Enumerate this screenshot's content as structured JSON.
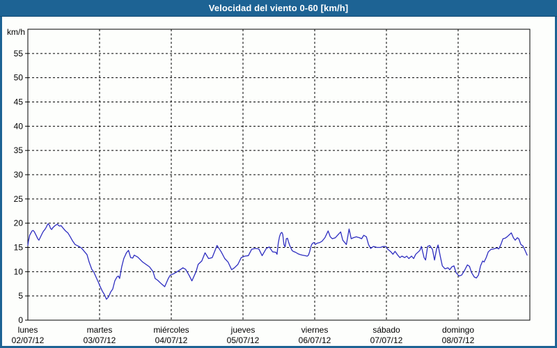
{
  "window": {
    "title": "Velocidad del viento 0-60 [km/h]"
  },
  "colors": {
    "titlebar": "#1d6394",
    "frame_border": "#1d6394",
    "title_text": "#ffffff",
    "plot_background": "#fdfefc",
    "axis": "#000000",
    "grid": "#000000",
    "line": "#2d2dc0"
  },
  "chart_data": {
    "type": "line",
    "title": "Velocidad del viento 0-60 [km/h]",
    "ylabel": "km/h",
    "y_unit_label": "km/h",
    "ylim": [
      0,
      60
    ],
    "y_ticks": [
      0,
      5,
      10,
      15,
      20,
      25,
      30,
      35,
      40,
      45,
      50,
      55
    ],
    "x_hours_range": [
      0,
      168
    ],
    "grid": "dashed",
    "legend_position": "none",
    "x_day_ticks": [
      {
        "day": "lunes",
        "date": "02/07/12"
      },
      {
        "day": "martes",
        "date": "03/07/12"
      },
      {
        "day": "miércoles",
        "date": "04/07/12"
      },
      {
        "day": "jueves",
        "date": "05/07/12"
      },
      {
        "day": "viernes",
        "date": "06/07/12"
      },
      {
        "day": "sábado",
        "date": "07/07/12"
      },
      {
        "day": "domingo",
        "date": "08/07/12"
      }
    ],
    "series": [
      {
        "name": "velocidad del viento",
        "color": "#2d2dc0",
        "points": [
          [
            0,
            15.4
          ],
          [
            0.2,
            16.3
          ],
          [
            0.6,
            17.5
          ],
          [
            1.4,
            18.4
          ],
          [
            1.8,
            18.5
          ],
          [
            2.2,
            18.2
          ],
          [
            3,
            17.2
          ],
          [
            3.3,
            16.8
          ],
          [
            3.7,
            16.5
          ],
          [
            4.1,
            17
          ],
          [
            4.5,
            17.5
          ],
          [
            4.9,
            18
          ],
          [
            5.3,
            18.4
          ],
          [
            5.7,
            18.7
          ],
          [
            6.1,
            19.1
          ],
          [
            6.4,
            19.5
          ],
          [
            6.8,
            19.9
          ],
          [
            7.2,
            19.6
          ],
          [
            7.6,
            18.9
          ],
          [
            8,
            18.7
          ],
          [
            8.4,
            19.1
          ],
          [
            9.1,
            19.5
          ],
          [
            9.9,
            19.8
          ],
          [
            10.3,
            19.5
          ],
          [
            10.7,
            19.4
          ],
          [
            11.1,
            19.5
          ],
          [
            11.9,
            18.9
          ],
          [
            12.6,
            18.4
          ],
          [
            13.4,
            18
          ],
          [
            14.2,
            17.2
          ],
          [
            15,
            16.3
          ],
          [
            15.8,
            15.6
          ],
          [
            16.8,
            15.3
          ],
          [
            17.9,
            14.9
          ],
          [
            18.6,
            14.4
          ],
          [
            19.8,
            13.5
          ],
          [
            20.5,
            12
          ],
          [
            21.4,
            10.5
          ],
          [
            22.1,
            9.9
          ],
          [
            22.8,
            8.9
          ],
          [
            23.7,
            7.7
          ],
          [
            24,
            7.2
          ],
          [
            24.9,
            6
          ],
          [
            25.6,
            5.3
          ],
          [
            26.3,
            4.3
          ],
          [
            27,
            4.8
          ],
          [
            27.7,
            5.8
          ],
          [
            28.4,
            6.4
          ],
          [
            29.1,
            8.1
          ],
          [
            29.8,
            8.9
          ],
          [
            30.3,
            9.1
          ],
          [
            30.7,
            8.6
          ],
          [
            31.4,
            11
          ],
          [
            32.1,
            12.7
          ],
          [
            33,
            13.9
          ],
          [
            33.7,
            14.4
          ],
          [
            34.4,
            12.9
          ],
          [
            35.1,
            12.8
          ],
          [
            35.6,
            13.4
          ],
          [
            36.8,
            13
          ],
          [
            38.4,
            12
          ],
          [
            40.7,
            11
          ],
          [
            41.9,
            10
          ],
          [
            42.6,
            8.6
          ],
          [
            43.5,
            8.2
          ],
          [
            44.7,
            7.5
          ],
          [
            45.8,
            6.9
          ],
          [
            47,
            8.6
          ],
          [
            47.7,
            9.3
          ],
          [
            48.9,
            9.6
          ],
          [
            50,
            10
          ],
          [
            51.9,
            10.8
          ],
          [
            52.8,
            10.5
          ],
          [
            54,
            9.2
          ],
          [
            54.9,
            8.1
          ],
          [
            56.3,
            10
          ],
          [
            57,
            11.5
          ],
          [
            58.2,
            12.2
          ],
          [
            59.3,
            13.9
          ],
          [
            60.5,
            12.7
          ],
          [
            61.7,
            12.9
          ],
          [
            62.8,
            14.6
          ],
          [
            63.3,
            15.4
          ],
          [
            64.7,
            14.1
          ],
          [
            65.9,
            12.7
          ],
          [
            67,
            12
          ],
          [
            68.2,
            10.4
          ],
          [
            69.1,
            10.8
          ],
          [
            70.3,
            11.5
          ],
          [
            71.4,
            12.9
          ],
          [
            72.6,
            13.2
          ],
          [
            73.8,
            13.3
          ],
          [
            74.9,
            14.6
          ],
          [
            76.1,
            14.8
          ],
          [
            77.3,
            14.7
          ],
          [
            78.4,
            13.3
          ],
          [
            79.8,
            14.8
          ],
          [
            80.8,
            15.1
          ],
          [
            81.9,
            14.1
          ],
          [
            83,
            14
          ],
          [
            83.4,
            13.6
          ],
          [
            83.8,
            15.8
          ],
          [
            84.2,
            17.2
          ],
          [
            84.6,
            17.9
          ],
          [
            85,
            18.1
          ],
          [
            85.3,
            17.7
          ],
          [
            85.7,
            15.6
          ],
          [
            86.1,
            15.1
          ],
          [
            86.5,
            16.8
          ],
          [
            86.9,
            16.9
          ],
          [
            87.3,
            16
          ],
          [
            87.7,
            15.3
          ],
          [
            88.1,
            14.8
          ],
          [
            88.4,
            14.4
          ],
          [
            88.8,
            14.2
          ],
          [
            89.6,
            14
          ],
          [
            90.4,
            13.7
          ],
          [
            91.2,
            13.5
          ],
          [
            91.9,
            13.4
          ],
          [
            92.7,
            13.3
          ],
          [
            93.5,
            13.2
          ],
          [
            93.9,
            13.4
          ],
          [
            94.3,
            14.1
          ],
          [
            94.7,
            15.1
          ],
          [
            95,
            15.6
          ],
          [
            95.4,
            15.9
          ],
          [
            95.8,
            16
          ],
          [
            96.2,
            15.6
          ],
          [
            96.6,
            15.8
          ],
          [
            97,
            15.9
          ],
          [
            97.7,
            16
          ],
          [
            98.5,
            16.3
          ],
          [
            99.4,
            17
          ],
          [
            100.5,
            18.4
          ],
          [
            101.2,
            17.2
          ],
          [
            101.9,
            16.8
          ],
          [
            102.9,
            17
          ],
          [
            104.7,
            18.2
          ],
          [
            105.4,
            16.5
          ],
          [
            106.6,
            15.6
          ],
          [
            107.5,
            18.8
          ],
          [
            108.2,
            16.8
          ],
          [
            108.9,
            17
          ],
          [
            109.9,
            17.2
          ],
          [
            111,
            17
          ],
          [
            111.7,
            16.8
          ],
          [
            112.4,
            17.5
          ],
          [
            113.3,
            17.2
          ],
          [
            114,
            15.6
          ],
          [
            114.7,
            14.8
          ],
          [
            115.7,
            15.2
          ],
          [
            116.8,
            15
          ],
          [
            118,
            15
          ],
          [
            118.9,
            15.2
          ],
          [
            119.8,
            15.2
          ],
          [
            120.5,
            14.6
          ],
          [
            121.5,
            14.1
          ],
          [
            122.2,
            13.6
          ],
          [
            122.9,
            14.2
          ],
          [
            123.8,
            13.4
          ],
          [
            124.5,
            12.9
          ],
          [
            125.2,
            13.2
          ],
          [
            126.1,
            12.9
          ],
          [
            126.8,
            13.2
          ],
          [
            127.5,
            12.7
          ],
          [
            128.4,
            13.2
          ],
          [
            129.1,
            12.7
          ],
          [
            129.8,
            13.6
          ],
          [
            130.7,
            14.1
          ],
          [
            131.2,
            14.4
          ],
          [
            131.7,
            15.2
          ],
          [
            132.6,
            12.9
          ],
          [
            133.1,
            12.4
          ],
          [
            133.8,
            15.2
          ],
          [
            134.5,
            15.4
          ],
          [
            135.4,
            14.6
          ],
          [
            136.1,
            12.4
          ],
          [
            136.8,
            14.7
          ],
          [
            137.3,
            15.5
          ],
          [
            138,
            13.2
          ],
          [
            138.7,
            11.2
          ],
          [
            139.6,
            10.6
          ],
          [
            140.6,
            10.8
          ],
          [
            141.2,
            10.4
          ],
          [
            141.9,
            11
          ],
          [
            142.6,
            11.2
          ],
          [
            143.3,
            9.8
          ],
          [
            144.3,
            9.1
          ],
          [
            145.2,
            9.3
          ],
          [
            146.1,
            10.2
          ],
          [
            147.1,
            11.4
          ],
          [
            147.8,
            11.1
          ],
          [
            148.5,
            9.8
          ],
          [
            149.4,
            8.9
          ],
          [
            150.1,
            8.7
          ],
          [
            150.8,
            9.3
          ],
          [
            151.5,
            11.2
          ],
          [
            152.2,
            12.2
          ],
          [
            152.7,
            12
          ],
          [
            153.4,
            12.9
          ],
          [
            154.1,
            14.1
          ],
          [
            155,
            14.6
          ],
          [
            155.9,
            14.7
          ],
          [
            156.9,
            14.9
          ],
          [
            157.6,
            14.7
          ],
          [
            158.3,
            15.6
          ],
          [
            159,
            16.8
          ],
          [
            159.7,
            16.9
          ],
          [
            160.4,
            17.2
          ],
          [
            161.8,
            18
          ],
          [
            162.5,
            17
          ],
          [
            163.1,
            16.5
          ],
          [
            163.8,
            17
          ],
          [
            164.3,
            16.8
          ],
          [
            165,
            15.6
          ],
          [
            165.7,
            15.3
          ],
          [
            166.4,
            14.4
          ],
          [
            167.1,
            13.4
          ]
        ]
      }
    ]
  }
}
